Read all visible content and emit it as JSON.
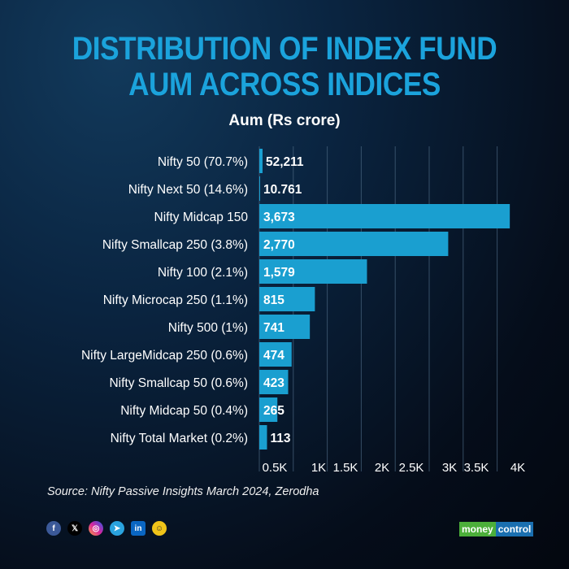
{
  "title_line1": "DISTRIBUTION OF INDEX FUND",
  "title_line2": "AUM ACROSS INDICES",
  "chart_data": {
    "type": "bar",
    "orientation": "horizontal",
    "title": "Aum (Rs crore)",
    "categories": [
      "Nifty 50 (70.7%)",
      "Nifty Next 50 (14.6%)",
      "Nifty Midcap 150",
      "Nifty Smallcap 250 (3.8%)",
      "Nifty 100 (2.1%)",
      "Nifty Microcap 250 (1.1%)",
      "Nifty 500 (1%)",
      "Nifty LargeMidcap 250 (0.6%)",
      "Nifty Smallcap 50 (0.6%)",
      "Nifty Midcap 50 (0.4%)",
      "Nifty Total Market (0.2%)"
    ],
    "values": [
      52211,
      10761,
      3673,
      2770,
      1579,
      815,
      741,
      474,
      423,
      265,
      113
    ],
    "value_labels": [
      "52,211",
      "10.761",
      "3,673",
      "2,770",
      "1,579",
      "815",
      "741",
      "474",
      "423",
      "265",
      "113"
    ],
    "xtick_labels": [
      "0.5K",
      "1K",
      "1.5K",
      "2K",
      "2.5K",
      "3K",
      "3.5K",
      "4K"
    ],
    "xlim": [
      0,
      4000
    ],
    "grid": true,
    "bar_color": "#1a9fd0"
  },
  "source": "Source: Nifty Passive Insights March 2024, Zerodha",
  "social": [
    "f",
    "𝕏",
    "◎",
    "➤",
    "in",
    "☺"
  ],
  "logo": {
    "part1": "money",
    "part2": "control"
  }
}
